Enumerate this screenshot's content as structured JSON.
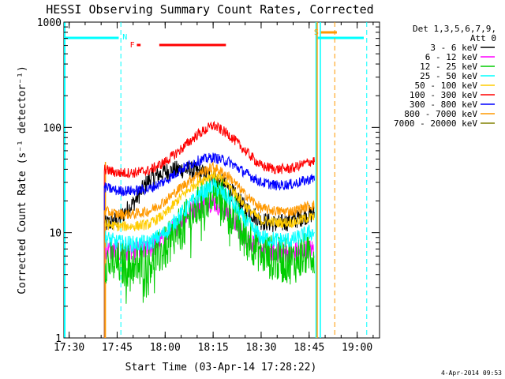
{
  "chart_data": {
    "type": "line",
    "title": "HESSI Observing Summary Count Rates, Corrected",
    "xlabel": "Start Time (03-Apr-14 17:28:22)",
    "ylabel": "Corrected Count Rate (s⁻¹ detector⁻¹)",
    "y_scale": "log",
    "ylim": [
      1,
      1000
    ],
    "xlim": [
      "17:28:22",
      "19:07:00"
    ],
    "x_ticks": [
      {
        "t": "17:30",
        "label": "17:30"
      },
      {
        "t": "17:45",
        "label": "17:45"
      },
      {
        "t": "18:00",
        "label": "18:00"
      },
      {
        "t": "18:15",
        "label": "18:15"
      },
      {
        "t": "18:30",
        "label": "18:30"
      },
      {
        "t": "18:45",
        "label": "18:45"
      },
      {
        "t": "19:00",
        "label": "19:00"
      }
    ],
    "y_ticks": [
      {
        "v": 1,
        "label": "1"
      },
      {
        "v": 10,
        "label": "10"
      },
      {
        "v": 100,
        "label": "100"
      },
      {
        "v": 1000,
        "label": "1000"
      }
    ],
    "legend": {
      "placement": "right",
      "header": [
        "Det 1,3,5,6,7,9,",
        "Att 0"
      ]
    },
    "series": [
      {
        "name": "3 - 6 keV",
        "color": "#000000",
        "noise": 0.09,
        "x": [
          "17:41:00",
          "17:45:00",
          "17:50:00",
          "17:55:00",
          "18:00:00",
          "18:05:00",
          "18:10:00",
          "18:15:00",
          "18:20:00",
          "18:25:00",
          "18:30:00",
          "18:35:00",
          "18:40:00",
          "18:45:00",
          "18:46:40"
        ],
        "values": [
          12,
          13,
          19,
          32,
          38,
          40,
          38,
          34,
          26,
          17,
          13,
          12,
          13,
          15,
          15
        ]
      },
      {
        "name": "6 - 12 keV",
        "color": "#ff00ff",
        "noise": 0.1,
        "x": [
          "17:41:00",
          "17:45:00",
          "17:50:00",
          "17:55:00",
          "18:00:00",
          "18:05:00",
          "18:10:00",
          "18:15:00",
          "18:20:00",
          "18:25:00",
          "18:30:00",
          "18:35:00",
          "18:40:00",
          "18:45:00",
          "18:46:40"
        ],
        "values": [
          7,
          6.5,
          6.5,
          7,
          9,
          13,
          18,
          20,
          15,
          9,
          7,
          6.5,
          6.5,
          7,
          7
        ]
      },
      {
        "name": "12 - 25 keV",
        "color": "#00cc00",
        "noise": 0.22,
        "x": [
          "17:41:00",
          "17:45:00",
          "17:50:00",
          "17:55:00",
          "18:00:00",
          "18:05:00",
          "18:10:00",
          "18:15:00",
          "18:20:00",
          "18:25:00",
          "18:30:00",
          "18:35:00",
          "18:40:00",
          "18:45:00",
          "18:46:40"
        ],
        "values": [
          5.5,
          5,
          5,
          5.3,
          7,
          11,
          17,
          25,
          17,
          10,
          6.5,
          5.5,
          5.3,
          6.5,
          6.5
        ]
      },
      {
        "name": "25 - 50 keV",
        "color": "#00ffff",
        "noise": 0.08,
        "x": [
          "17:41:00",
          "17:45:00",
          "17:50:00",
          "17:55:00",
          "18:00:00",
          "18:05:00",
          "18:10:00",
          "18:15:00",
          "18:20:00",
          "18:25:00",
          "18:30:00",
          "18:35:00",
          "18:40:00",
          "18:45:00",
          "18:46:40"
        ],
        "values": [
          9,
          8,
          7.8,
          8,
          10,
          15,
          22,
          28,
          21,
          13,
          9,
          8.5,
          8.5,
          10,
          10
        ]
      },
      {
        "name": "50 - 100 keV",
        "color": "#ffcc00",
        "noise": 0.05,
        "x": [
          "17:41:00",
          "17:45:00",
          "17:50:00",
          "17:55:00",
          "18:00:00",
          "18:05:00",
          "18:10:00",
          "18:15:00",
          "18:20:00",
          "18:25:00",
          "18:30:00",
          "18:35:00",
          "18:40:00",
          "18:45:00",
          "18:46:40"
        ],
        "values": [
          12,
          11.5,
          11.5,
          12,
          15,
          22,
          30,
          36,
          28,
          18,
          13,
          12.5,
          12.5,
          14,
          14
        ]
      },
      {
        "name": "100 - 300 keV",
        "color": "#ff0000",
        "noise": 0.05,
        "x": [
          "17:41:00",
          "17:45:00",
          "17:50:00",
          "17:55:00",
          "18:00:00",
          "18:05:00",
          "18:10:00",
          "18:15:00",
          "18:20:00",
          "18:25:00",
          "18:30:00",
          "18:35:00",
          "18:40:00",
          "18:45:00",
          "18:46:40"
        ],
        "values": [
          40,
          37,
          37,
          39,
          47,
          62,
          85,
          105,
          85,
          60,
          43,
          40,
          41,
          47,
          48
        ]
      },
      {
        "name": "300 - 800 keV",
        "color": "#0000ff",
        "noise": 0.05,
        "x": [
          "17:41:00",
          "17:45:00",
          "17:50:00",
          "17:55:00",
          "18:00:00",
          "18:05:00",
          "18:10:00",
          "18:15:00",
          "18:20:00",
          "18:25:00",
          "18:30:00",
          "18:35:00",
          "18:40:00",
          "18:45:00",
          "18:46:40"
        ],
        "values": [
          27,
          25,
          25,
          26,
          31,
          40,
          48,
          52,
          47,
          37,
          30,
          28,
          29,
          32,
          33
        ]
      },
      {
        "name": "800 - 7000 keV",
        "color": "#ff9900",
        "noise": 0.05,
        "x": [
          "17:41:00",
          "17:45:00",
          "17:50:00",
          "17:55:00",
          "18:00:00",
          "18:05:00",
          "18:10:00",
          "18:15:00",
          "18:20:00",
          "18:25:00",
          "18:30:00",
          "18:35:00",
          "18:40:00",
          "18:45:00",
          "18:46:40"
        ],
        "values": [
          16,
          15,
          15,
          16,
          20,
          27,
          36,
          42,
          34,
          23,
          17,
          16,
          16,
          18,
          18
        ]
      },
      {
        "name": "7000 - 20000 keV",
        "color": "#808000",
        "noise": 0,
        "x": [],
        "values": []
      }
    ],
    "annotations": {
      "saa_line_color": "#00ffff",
      "flag_line_color": "#ff9900",
      "labels": [
        {
          "text": "N",
          "color": "#00ffff"
        },
        {
          "text": "F",
          "color": "#ff0000"
        },
        {
          "text": "S",
          "color": "#ff9900"
        }
      ]
    },
    "timestamp": "4-Apr-2014 09:53"
  }
}
